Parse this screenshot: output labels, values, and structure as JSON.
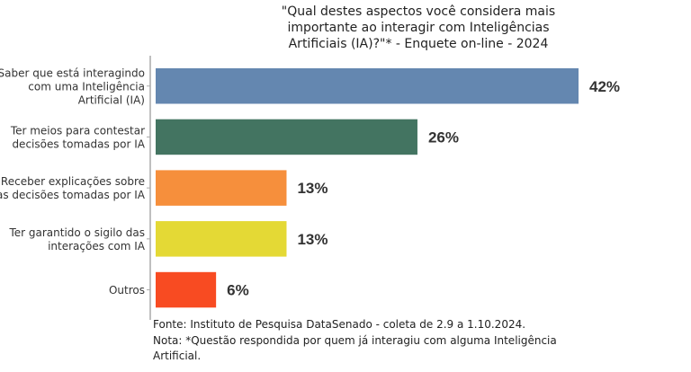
{
  "chart_data": {
    "type": "bar",
    "orientation": "horizontal",
    "title_lines": [
      "\"Qual destes aspectos você considera mais",
      "importante ao interagir com Inteligências",
      "Artificiais (IA)?\"* - Enquete on-line - 2024"
    ],
    "categories": [
      [
        "Saber que está interagindo",
        "com uma Inteligência",
        "Artificial (IA)"
      ],
      [
        "Ter meios para contestar",
        "decisões tomadas por IA"
      ],
      [
        "Receber explicações sobre",
        "as decisões tomadas por IA"
      ],
      [
        "Ter garantido o sigilo das",
        "interações com IA"
      ],
      [
        "Outros"
      ]
    ],
    "values": [
      42,
      26,
      13,
      13,
      6
    ],
    "data_labels": [
      "42%",
      "26%",
      "13%",
      "13%",
      "6%"
    ],
    "colors": [
      "#6487b0",
      "#437461",
      "#f68f3c",
      "#e4d935",
      "#f84b22"
    ],
    "xlim": [
      0,
      42
    ],
    "grid": false,
    "legend": "none"
  },
  "footer": {
    "source": "Fonte: Instituto de Pesquisa DataSenado - coleta de 2.9 a 1.10.2024.",
    "note_lines": [
      "Nota: *Questão respondida por quem já interagiu com alguma Inteligência",
      "Artificial."
    ]
  }
}
